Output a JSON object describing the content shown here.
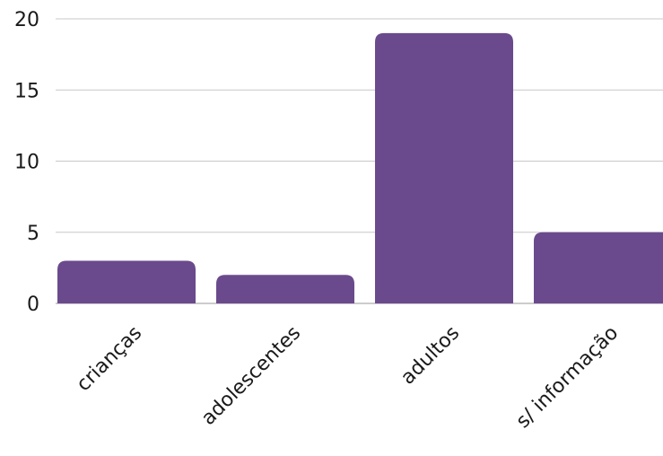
{
  "chart_data": {
    "type": "bar",
    "title": "",
    "xlabel": "",
    "ylabel": "",
    "categories": [
      "crianças",
      "adolescentes",
      "adultos",
      "s/ informação"
    ],
    "values": [
      3,
      2,
      19,
      5
    ],
    "ylim": [
      0,
      20
    ],
    "yticks": [
      0,
      5,
      10,
      15,
      20
    ],
    "grid": true,
    "legend": "none",
    "colors": {
      "bar": "#6a4a8c",
      "grid": "#c8c8c8",
      "text": "#1a1a1a"
    }
  }
}
